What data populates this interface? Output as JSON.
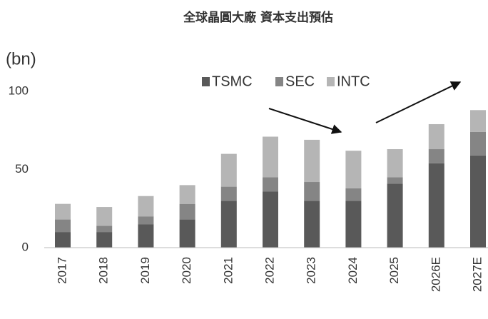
{
  "chart_data": {
    "type": "bar",
    "stacked": true,
    "title": "全球晶圓大廠 資本支出預估",
    "y_label": "(bn)",
    "categories": [
      "2017",
      "2018",
      "2019",
      "2020",
      "2021",
      "2022",
      "2023",
      "2024",
      "2025",
      "2026E",
      "2027E"
    ],
    "series": [
      {
        "name": "TSMC",
        "color": "#595959",
        "values": [
          10,
          10,
          15,
          18,
          30,
          36,
          30,
          30,
          41,
          54,
          59
        ]
      },
      {
        "name": "SEC",
        "color": "#858585",
        "values": [
          8,
          4,
          5,
          10,
          9,
          9,
          12,
          8,
          4,
          9,
          15
        ]
      },
      {
        "name": "INTC",
        "color": "#b5b5b5",
        "values": [
          10,
          12,
          13,
          12,
          21,
          26,
          27,
          24,
          18,
          16,
          14
        ]
      }
    ],
    "ylim": [
      0,
      100
    ],
    "yticks": [
      0,
      50,
      100
    ],
    "grid": false
  }
}
